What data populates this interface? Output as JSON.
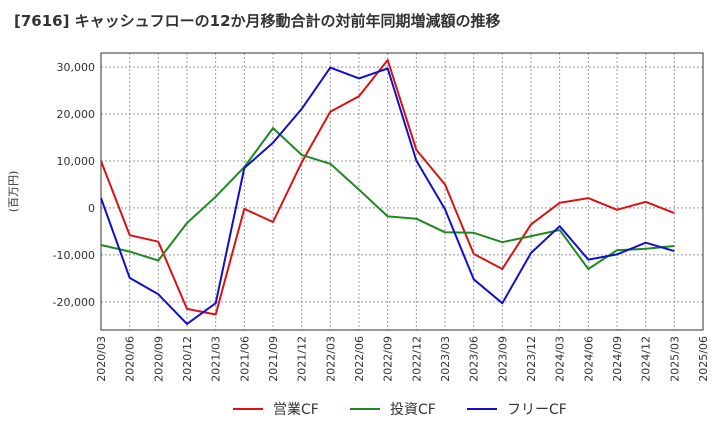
{
  "chart_data": {
    "type": "line",
    "title": "[7616]  キャッシュフローの12か月移動合計の対前年同期増減額の推移",
    "ylabel": "(百万円)",
    "xlabel": "",
    "ylim": [
      -26000,
      33000
    ],
    "yticks": [
      30000,
      20000,
      10000,
      0,
      -10000,
      -20000
    ],
    "ytick_labels": [
      "30,000",
      "20,000",
      "10,000",
      "0",
      "-10,000",
      "-20,000"
    ],
    "xtick_labels": [
      "2020/03",
      "2020/06",
      "2020/09",
      "2020/12",
      "2021/03",
      "2021/06",
      "2021/09",
      "2021/12",
      "2022/03",
      "2022/06",
      "2022/09",
      "2022/12",
      "2023/03",
      "2023/06",
      "2023/09",
      "2023/12",
      "2024/03",
      "2024/06",
      "2024/09",
      "2024/12",
      "2025/03",
      "2025/06"
    ],
    "grid": true,
    "legend_position": "bottom",
    "x": [
      "2020/03",
      "2020/06",
      "2020/09",
      "2020/12",
      "2021/03",
      "2021/06",
      "2021/09",
      "2021/12",
      "2022/03",
      "2022/06",
      "2022/09",
      "2022/12",
      "2023/03",
      "2023/06",
      "2023/09",
      "2023/12",
      "2024/03",
      "2024/06",
      "2024/09",
      "2024/12",
      "2025/03"
    ],
    "series": [
      {
        "name": "営業CF",
        "color": "#dd1111",
        "values": [
          10000,
          -5800,
          -7200,
          -21500,
          -22700,
          -200,
          -3000,
          9700,
          20500,
          23800,
          31500,
          12400,
          5000,
          -9800,
          -13000,
          -3500,
          1100,
          2100,
          -400,
          1300,
          -1100
        ]
      },
      {
        "name": "投資CF",
        "color": "#228822",
        "values": [
          -7900,
          -9300,
          -11200,
          -3200,
          2400,
          8700,
          17000,
          11300,
          9400,
          3900,
          -1800,
          -2300,
          -5200,
          -5300,
          -7300,
          -6000,
          -4700,
          -13000,
          -9000,
          -8700,
          -8100
        ]
      },
      {
        "name": "フリーCF",
        "color": "#1111cc",
        "values": [
          2100,
          -14900,
          -18400,
          -24700,
          -20300,
          8500,
          13900,
          21100,
          29900,
          27600,
          29700,
          10100,
          -300,
          -15200,
          -20300,
          -9600,
          -3900,
          -11000,
          -9900,
          -7400,
          -9200
        ]
      }
    ]
  }
}
